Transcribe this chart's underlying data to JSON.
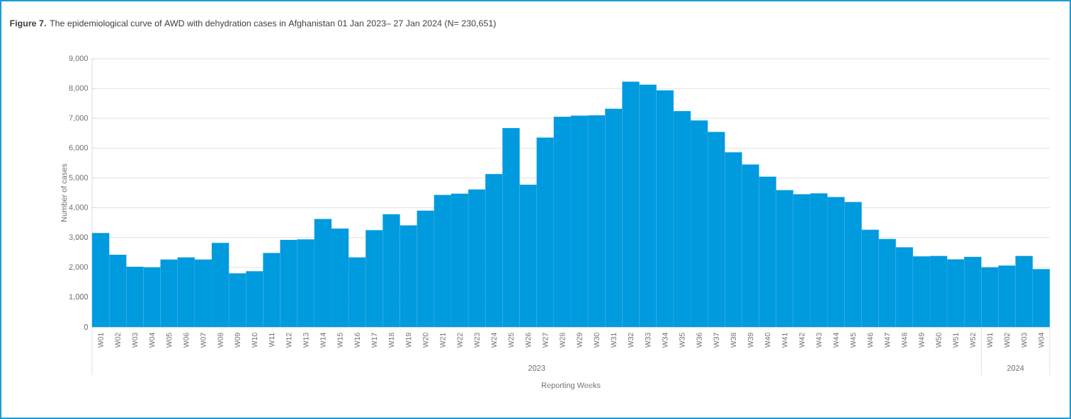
{
  "chart_data": {
    "type": "bar",
    "title": "**Figure 7.** The epidemiological curve of AWD with dehydration cases in Afghanistan 01 Jan 2023– 27 Jan 2024 (N= 230,651)",
    "xlabel": "Reporting Weeks",
    "ylabel": "Number of cases",
    "categories": [
      "W01",
      "W02",
      "W03",
      "W04",
      "W05",
      "W06",
      "W07",
      "W08",
      "W09",
      "W10",
      "W11",
      "W12",
      "W13",
      "W14",
      "W15",
      "W16",
      "W17",
      "W18",
      "W19",
      "W20",
      "W21",
      "W22",
      "W23",
      "W24",
      "W25",
      "W26",
      "W27",
      "W28",
      "W29",
      "W30",
      "W31",
      "W32",
      "W33",
      "W34",
      "W35",
      "W36",
      "W37",
      "W38",
      "W39",
      "W40",
      "W41",
      "W42",
      "W43",
      "W44",
      "W45",
      "W46",
      "W47",
      "W48",
      "W49",
      "W50",
      "W51",
      "W52",
      "W01",
      "W02",
      "W03",
      "W04"
    ],
    "values": [
      3150,
      2420,
      2020,
      2000,
      2260,
      2330,
      2260,
      2820,
      1800,
      1870,
      2480,
      2920,
      2940,
      3620,
      3300,
      2330,
      3250,
      3780,
      3410,
      3900,
      4430,
      4470,
      4610,
      5130,
      6670,
      4770,
      6350,
      7050,
      7090,
      7100,
      7320,
      8230,
      8130,
      7940,
      7240,
      6930,
      6540,
      5860,
      5450,
      5040,
      4590,
      4450,
      4480,
      4360,
      4190,
      3260,
      2950,
      2670,
      2370,
      2380,
      2270,
      2350,
      2000,
      2060,
      2380,
      1940
    ],
    "color": "#009ade",
    "ylim": [
      0,
      9000
    ],
    "yticks": [
      {
        "value": 0,
        "label": "0"
      },
      {
        "value": 1000,
        "label": "1,000"
      },
      {
        "value": 2000,
        "label": "2,000"
      },
      {
        "value": 3000,
        "label": "3,000"
      },
      {
        "value": 4000,
        "label": "4,000"
      },
      {
        "value": 5000,
        "label": "5,000"
      },
      {
        "value": 6000,
        "label": "6,000"
      },
      {
        "value": 7000,
        "label": "7,000"
      },
      {
        "value": 8000,
        "label": "8,000"
      },
      {
        "value": 9000,
        "label": "9,000"
      }
    ],
    "grid": "y",
    "annotations": [
      "2023",
      "2024"
    ]
  }
}
